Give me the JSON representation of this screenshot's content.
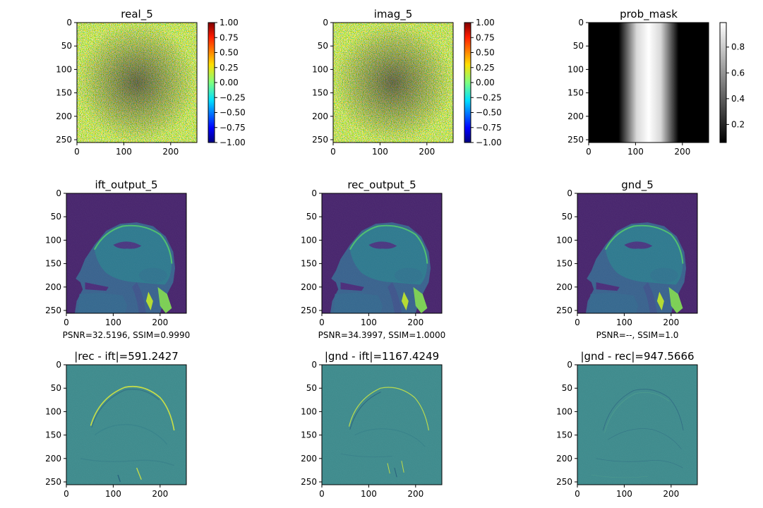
{
  "figure": {
    "panels": [
      {
        "id": "real",
        "title": "real_5",
        "image": "noise-jet",
        "caption": "",
        "colorbar": {
          "cmap": "jet",
          "ticks": [
            "1.00",
            "0.75",
            "0.50",
            "0.25",
            "0.00",
            "−0.25",
            "−0.50",
            "−0.75",
            "−1.00"
          ]
        }
      },
      {
        "id": "imag",
        "title": "imag_5",
        "image": "noise-jet",
        "caption": "",
        "colorbar": {
          "cmap": "jet",
          "ticks": [
            "1.00",
            "0.75",
            "0.50",
            "0.25",
            "0.00",
            "−0.25",
            "−0.50",
            "−0.75",
            "−1.00"
          ]
        }
      },
      {
        "id": "mask",
        "title": "prob_mask",
        "image": "prob-mask",
        "caption": "",
        "colorbar": {
          "cmap": "gray",
          "ticks": [
            "0.8",
            "0.6",
            "0.4",
            "0.2"
          ]
        }
      },
      {
        "id": "ift",
        "title": "ift_output_5",
        "image": "mri-head",
        "caption": "PSNR=32.5196, SSIM=0.9990",
        "colorbar": null
      },
      {
        "id": "rec",
        "title": "rec_output_5",
        "image": "mri-head",
        "caption": "PSNR=34.3997, SSIM=1.0000",
        "colorbar": null
      },
      {
        "id": "gnd",
        "title": "gnd_5",
        "image": "mri-head",
        "caption": "PSNR=--, SSIM=1.0",
        "colorbar": null
      },
      {
        "id": "d1",
        "title": "|rec - ift|=591.2427",
        "image": "diff-strong",
        "caption": "",
        "colorbar": null
      },
      {
        "id": "d2",
        "title": "|gnd - ift|=1167.4249",
        "image": "diff-medium",
        "caption": "",
        "colorbar": null
      },
      {
        "id": "d3",
        "title": "|gnd - rec|=947.5666",
        "image": "diff-texture",
        "caption": "",
        "colorbar": null
      }
    ]
  },
  "chart_data": {
    "type": "heatmap",
    "layout": "3x3 grid of image panels",
    "xticks": [
      "0",
      "100",
      "200"
    ],
    "yticks": [
      "0",
      "50",
      "100",
      "150",
      "200",
      "250"
    ],
    "xlim": [
      0,
      256
    ],
    "ylim": [
      256,
      0
    ],
    "colors": {
      "mask_bright": "#ffffff",
      "mask_dark": "#000000",
      "viridis_bg": "#44206b",
      "diff_bg": "#3a8a8c"
    }
  }
}
